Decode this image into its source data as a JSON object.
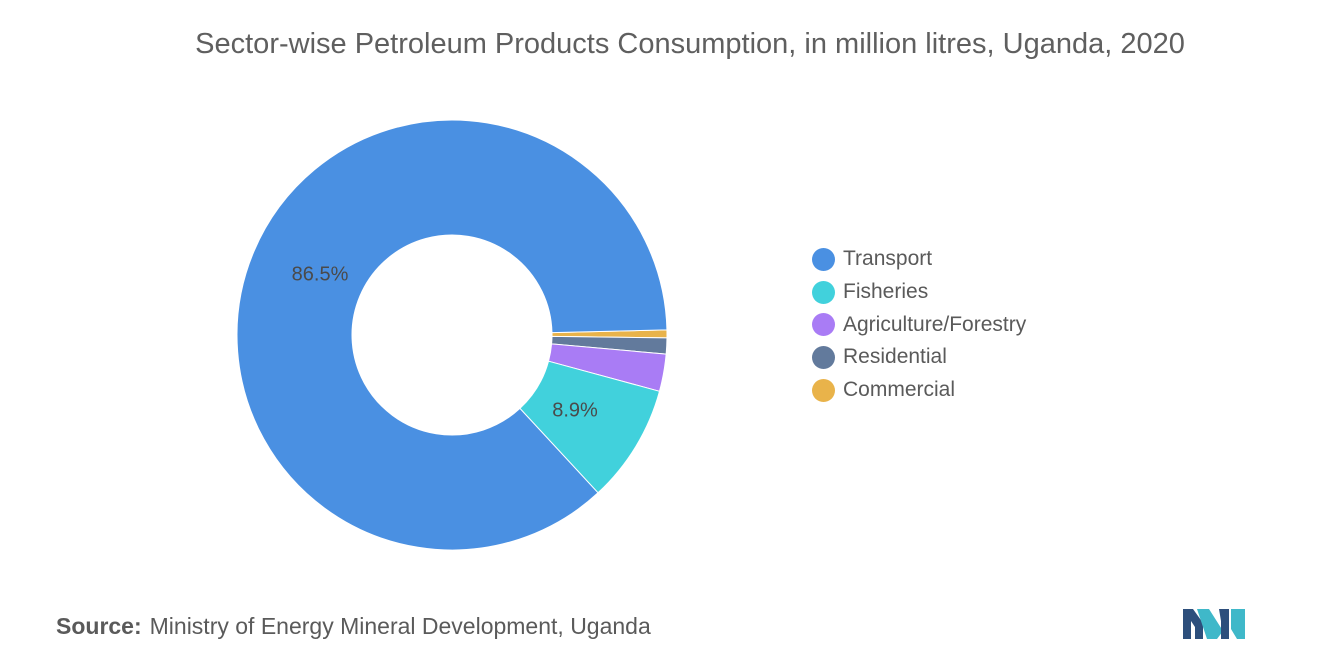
{
  "chart_data": {
    "type": "pie",
    "title": "Sector-wise Petroleum Products Consumption, in million litres, Uganda, 2020",
    "donut": true,
    "categories": [
      "Transport",
      "Fisheries",
      "Agriculture/Forestry",
      "Residential",
      "Commercial"
    ],
    "values": [
      86.5,
      8.9,
      2.8,
      1.2,
      0.6
    ],
    "data_labels": [
      "86.5%",
      "8.9%",
      "",
      "",
      ""
    ],
    "colors": [
      "#4a90e2",
      "#41d1dc",
      "#a97cf5",
      "#627a9c",
      "#e9b34a"
    ],
    "legend_position": "right"
  },
  "source": {
    "label": "Source:",
    "text": "Ministry of Energy Mineral Development, Uganda"
  },
  "logo": {
    "icon": "mordor-intelligence-logo",
    "colors": [
      "#2d4f7c",
      "#3fb8c9"
    ]
  }
}
